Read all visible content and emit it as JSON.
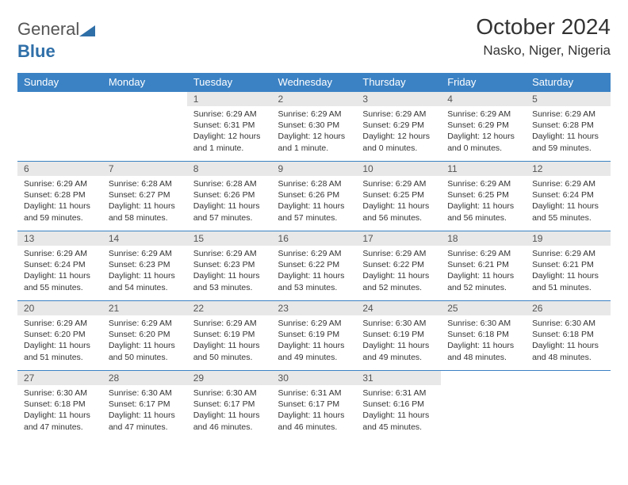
{
  "brand": {
    "name_a": "General",
    "name_b": "Blue"
  },
  "title": "October 2024",
  "location": "Nasko, Niger, Nigeria",
  "colors": {
    "header_bg": "#3b82c4",
    "header_text": "#ffffff",
    "daynum_bg": "#e8e8e8",
    "daynum_text": "#555555",
    "body_text": "#333333",
    "border": "#3b82c4"
  },
  "typography": {
    "title_fontsize": 28,
    "location_fontsize": 17,
    "weekday_fontsize": 13,
    "daynum_fontsize": 12,
    "body_fontsize": 10.5
  },
  "weekdays": [
    "Sunday",
    "Monday",
    "Tuesday",
    "Wednesday",
    "Thursday",
    "Friday",
    "Saturday"
  ],
  "weeks": [
    [
      null,
      null,
      {
        "n": "1",
        "sr": "Sunrise: 6:29 AM",
        "ss": "Sunset: 6:31 PM",
        "dl": "Daylight: 12 hours and 1 minute."
      },
      {
        "n": "2",
        "sr": "Sunrise: 6:29 AM",
        "ss": "Sunset: 6:30 PM",
        "dl": "Daylight: 12 hours and 1 minute."
      },
      {
        "n": "3",
        "sr": "Sunrise: 6:29 AM",
        "ss": "Sunset: 6:29 PM",
        "dl": "Daylight: 12 hours and 0 minutes."
      },
      {
        "n": "4",
        "sr": "Sunrise: 6:29 AM",
        "ss": "Sunset: 6:29 PM",
        "dl": "Daylight: 12 hours and 0 minutes."
      },
      {
        "n": "5",
        "sr": "Sunrise: 6:29 AM",
        "ss": "Sunset: 6:28 PM",
        "dl": "Daylight: 11 hours and 59 minutes."
      }
    ],
    [
      {
        "n": "6",
        "sr": "Sunrise: 6:29 AM",
        "ss": "Sunset: 6:28 PM",
        "dl": "Daylight: 11 hours and 59 minutes."
      },
      {
        "n": "7",
        "sr": "Sunrise: 6:28 AM",
        "ss": "Sunset: 6:27 PM",
        "dl": "Daylight: 11 hours and 58 minutes."
      },
      {
        "n": "8",
        "sr": "Sunrise: 6:28 AM",
        "ss": "Sunset: 6:26 PM",
        "dl": "Daylight: 11 hours and 57 minutes."
      },
      {
        "n": "9",
        "sr": "Sunrise: 6:28 AM",
        "ss": "Sunset: 6:26 PM",
        "dl": "Daylight: 11 hours and 57 minutes."
      },
      {
        "n": "10",
        "sr": "Sunrise: 6:29 AM",
        "ss": "Sunset: 6:25 PM",
        "dl": "Daylight: 11 hours and 56 minutes."
      },
      {
        "n": "11",
        "sr": "Sunrise: 6:29 AM",
        "ss": "Sunset: 6:25 PM",
        "dl": "Daylight: 11 hours and 56 minutes."
      },
      {
        "n": "12",
        "sr": "Sunrise: 6:29 AM",
        "ss": "Sunset: 6:24 PM",
        "dl": "Daylight: 11 hours and 55 minutes."
      }
    ],
    [
      {
        "n": "13",
        "sr": "Sunrise: 6:29 AM",
        "ss": "Sunset: 6:24 PM",
        "dl": "Daylight: 11 hours and 55 minutes."
      },
      {
        "n": "14",
        "sr": "Sunrise: 6:29 AM",
        "ss": "Sunset: 6:23 PM",
        "dl": "Daylight: 11 hours and 54 minutes."
      },
      {
        "n": "15",
        "sr": "Sunrise: 6:29 AM",
        "ss": "Sunset: 6:23 PM",
        "dl": "Daylight: 11 hours and 53 minutes."
      },
      {
        "n": "16",
        "sr": "Sunrise: 6:29 AM",
        "ss": "Sunset: 6:22 PM",
        "dl": "Daylight: 11 hours and 53 minutes."
      },
      {
        "n": "17",
        "sr": "Sunrise: 6:29 AM",
        "ss": "Sunset: 6:22 PM",
        "dl": "Daylight: 11 hours and 52 minutes."
      },
      {
        "n": "18",
        "sr": "Sunrise: 6:29 AM",
        "ss": "Sunset: 6:21 PM",
        "dl": "Daylight: 11 hours and 52 minutes."
      },
      {
        "n": "19",
        "sr": "Sunrise: 6:29 AM",
        "ss": "Sunset: 6:21 PM",
        "dl": "Daylight: 11 hours and 51 minutes."
      }
    ],
    [
      {
        "n": "20",
        "sr": "Sunrise: 6:29 AM",
        "ss": "Sunset: 6:20 PM",
        "dl": "Daylight: 11 hours and 51 minutes."
      },
      {
        "n": "21",
        "sr": "Sunrise: 6:29 AM",
        "ss": "Sunset: 6:20 PM",
        "dl": "Daylight: 11 hours and 50 minutes."
      },
      {
        "n": "22",
        "sr": "Sunrise: 6:29 AM",
        "ss": "Sunset: 6:19 PM",
        "dl": "Daylight: 11 hours and 50 minutes."
      },
      {
        "n": "23",
        "sr": "Sunrise: 6:29 AM",
        "ss": "Sunset: 6:19 PM",
        "dl": "Daylight: 11 hours and 49 minutes."
      },
      {
        "n": "24",
        "sr": "Sunrise: 6:30 AM",
        "ss": "Sunset: 6:19 PM",
        "dl": "Daylight: 11 hours and 49 minutes."
      },
      {
        "n": "25",
        "sr": "Sunrise: 6:30 AM",
        "ss": "Sunset: 6:18 PM",
        "dl": "Daylight: 11 hours and 48 minutes."
      },
      {
        "n": "26",
        "sr": "Sunrise: 6:30 AM",
        "ss": "Sunset: 6:18 PM",
        "dl": "Daylight: 11 hours and 48 minutes."
      }
    ],
    [
      {
        "n": "27",
        "sr": "Sunrise: 6:30 AM",
        "ss": "Sunset: 6:18 PM",
        "dl": "Daylight: 11 hours and 47 minutes."
      },
      {
        "n": "28",
        "sr": "Sunrise: 6:30 AM",
        "ss": "Sunset: 6:17 PM",
        "dl": "Daylight: 11 hours and 47 minutes."
      },
      {
        "n": "29",
        "sr": "Sunrise: 6:30 AM",
        "ss": "Sunset: 6:17 PM",
        "dl": "Daylight: 11 hours and 46 minutes."
      },
      {
        "n": "30",
        "sr": "Sunrise: 6:31 AM",
        "ss": "Sunset: 6:17 PM",
        "dl": "Daylight: 11 hours and 46 minutes."
      },
      {
        "n": "31",
        "sr": "Sunrise: 6:31 AM",
        "ss": "Sunset: 6:16 PM",
        "dl": "Daylight: 11 hours and 45 minutes."
      },
      null,
      null
    ]
  ]
}
